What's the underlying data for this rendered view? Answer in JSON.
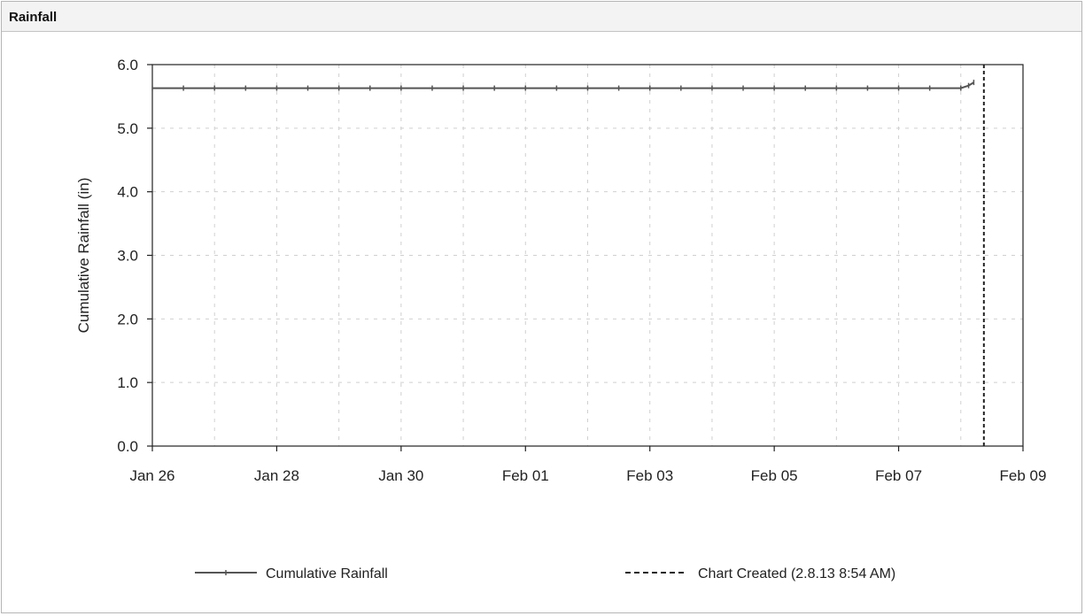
{
  "panel": {
    "title": "Rainfall"
  },
  "chart_data": {
    "type": "line",
    "title": "",
    "xlabel": "",
    "ylabel": "Cumulative Rainfall (in)",
    "x_axis": {
      "min": "2013-01-26",
      "max": "2013-02-09",
      "ticks": [
        {
          "date": "2013-01-26",
          "label": "Jan 26"
        },
        {
          "date": "2013-01-28",
          "label": "Jan 28"
        },
        {
          "date": "2013-01-30",
          "label": "Jan 30"
        },
        {
          "date": "2013-02-01",
          "label": "Feb 01"
        },
        {
          "date": "2013-02-03",
          "label": "Feb 03"
        },
        {
          "date": "2013-02-05",
          "label": "Feb 05"
        },
        {
          "date": "2013-02-07",
          "label": "Feb 07"
        },
        {
          "date": "2013-02-09",
          "label": "Feb 09"
        }
      ]
    },
    "ylim": [
      0,
      6
    ],
    "y_ticks": [
      "0.0",
      "1.0",
      "2.0",
      "3.0",
      "4.0",
      "5.0",
      "6.0"
    ],
    "grid": true,
    "legend_position": "bottom",
    "series": [
      {
        "name": "Cumulative Rainfall",
        "color": "#555555",
        "points": [
          {
            "x": "2013-01-26 00:00",
            "y": 5.63
          },
          {
            "x": "2013-01-26 12:00",
            "y": 5.63
          },
          {
            "x": "2013-01-27 00:00",
            "y": 5.63
          },
          {
            "x": "2013-01-27 12:00",
            "y": 5.63
          },
          {
            "x": "2013-01-28 00:00",
            "y": 5.63
          },
          {
            "x": "2013-01-28 12:00",
            "y": 5.63
          },
          {
            "x": "2013-01-29 00:00",
            "y": 5.63
          },
          {
            "x": "2013-01-29 12:00",
            "y": 5.63
          },
          {
            "x": "2013-01-30 00:00",
            "y": 5.63
          },
          {
            "x": "2013-01-30 12:00",
            "y": 5.63
          },
          {
            "x": "2013-01-31 00:00",
            "y": 5.63
          },
          {
            "x": "2013-01-31 12:00",
            "y": 5.63
          },
          {
            "x": "2013-02-01 00:00",
            "y": 5.63
          },
          {
            "x": "2013-02-01 12:00",
            "y": 5.63
          },
          {
            "x": "2013-02-02 00:00",
            "y": 5.63
          },
          {
            "x": "2013-02-02 12:00",
            "y": 5.63
          },
          {
            "x": "2013-02-03 00:00",
            "y": 5.63
          },
          {
            "x": "2013-02-03 12:00",
            "y": 5.63
          },
          {
            "x": "2013-02-04 00:00",
            "y": 5.63
          },
          {
            "x": "2013-02-04 12:00",
            "y": 5.63
          },
          {
            "x": "2013-02-05 00:00",
            "y": 5.63
          },
          {
            "x": "2013-02-05 12:00",
            "y": 5.63
          },
          {
            "x": "2013-02-06 00:00",
            "y": 5.63
          },
          {
            "x": "2013-02-06 12:00",
            "y": 5.63
          },
          {
            "x": "2013-02-07 00:00",
            "y": 5.63
          },
          {
            "x": "2013-02-07 12:00",
            "y": 5.63
          },
          {
            "x": "2013-02-08 00:00",
            "y": 5.63
          },
          {
            "x": "2013-02-08 03:00",
            "y": 5.67
          },
          {
            "x": "2013-02-08 05:00",
            "y": 5.72
          }
        ]
      }
    ],
    "markers": [
      {
        "name": "Chart Created (2.8.13 8:54 AM)",
        "x": "2013-02-08 08:54",
        "style": "dashed",
        "color": "#222222"
      }
    ]
  }
}
